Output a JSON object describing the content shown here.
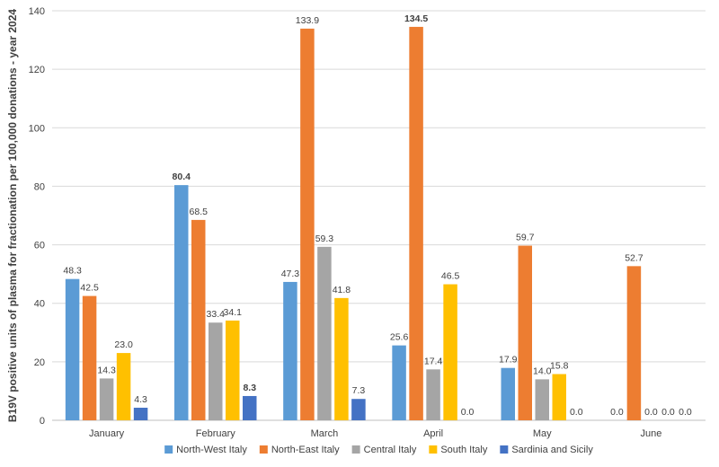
{
  "chart_data": {
    "type": "bar",
    "title": "",
    "xlabel": "",
    "ylabel": "B19V positive units of plasma for fractionation per 100,000 donations - year 2024",
    "ylim": [
      0,
      140
    ],
    "yticks": [
      0,
      20,
      40,
      60,
      80,
      100,
      120,
      140
    ],
    "grid": true,
    "legend_position": "bottom",
    "categories": [
      "January",
      "February",
      "March",
      "April",
      "May",
      "June"
    ],
    "series": [
      {
        "name": "North-West Italy",
        "color": "#5B9BD5",
        "values": [
          48.3,
          80.4,
          47.3,
          25.6,
          17.9,
          0.0
        ],
        "labels": [
          "48.3",
          "80.4",
          "47.3",
          "25.6",
          "17.9",
          "0.0"
        ],
        "bold": [
          false,
          true,
          false,
          false,
          false,
          false
        ]
      },
      {
        "name": "North-East Italy",
        "color": "#ED7D31",
        "values": [
          42.5,
          68.5,
          133.9,
          134.5,
          59.7,
          52.7
        ],
        "labels": [
          "42.5",
          "68.5",
          "133.9",
          "134.5",
          "59.7",
          "52.7"
        ],
        "bold": [
          false,
          false,
          false,
          true,
          false,
          false
        ]
      },
      {
        "name": "Central Italy",
        "color": "#A5A5A5",
        "values": [
          14.3,
          33.4,
          59.3,
          17.4,
          14.0,
          0.0
        ],
        "labels": [
          "14.3",
          "33.4",
          "59.3",
          "17.4",
          "14.0",
          "0.0"
        ],
        "bold": [
          false,
          false,
          false,
          false,
          false,
          false
        ]
      },
      {
        "name": "South Italy",
        "color": "#FFC000",
        "values": [
          23.0,
          34.1,
          41.8,
          46.5,
          15.8,
          0.0
        ],
        "labels": [
          "23.0",
          "34.1",
          "41.8",
          "46.5",
          "15.8",
          "0.0"
        ],
        "bold": [
          false,
          false,
          false,
          false,
          false,
          false
        ]
      },
      {
        "name": "Sardinia and Sicily",
        "color": "#4472C4",
        "values": [
          4.3,
          8.3,
          7.3,
          0.0,
          0.0,
          0.0
        ],
        "labels": [
          "4.3",
          "8.3",
          "7.3",
          "0.0",
          "0.0",
          "0.0"
        ],
        "bold": [
          false,
          true,
          false,
          false,
          false,
          false
        ]
      }
    ]
  }
}
